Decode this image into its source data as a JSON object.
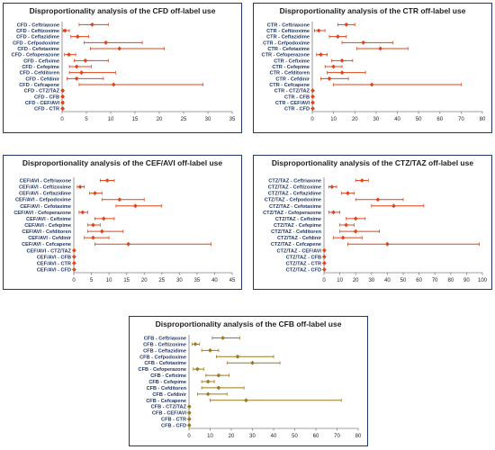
{
  "chart_data": [
    {
      "type": "forest",
      "title": "Disproportionality analysis of the CFD off-label use",
      "color": "#e0441a",
      "categories": [
        "CFD - Ceftriaxone",
        "CFD - Ceftizoxime",
        "CFD - Ceftazidime",
        "CFD - Cefpodoxime",
        "CFD - Cefotaxime",
        "CFD - Cefoperazone",
        "CFD - Cefixime",
        "CFD - Cefepime",
        "CFD - Cefditoren",
        "CFD - Cefdinir",
        "CFD - Cefcapene",
        "CFD - CTZ/TAZ",
        "CFD - CFB",
        "CFD - CEF/AVI",
        "CFD - CTR"
      ],
      "estimate": [
        6.2,
        0.6,
        3.2,
        9.0,
        11.8,
        1.4,
        4.8,
        3.0,
        4.0,
        3.0,
        10.6,
        0.1,
        0.1,
        0.1,
        0.1
      ],
      "lower": [
        3.5,
        0.2,
        1.8,
        4.5,
        5.8,
        0.5,
        2.5,
        1.5,
        1.5,
        1.0,
        3.5,
        0,
        0,
        0,
        0
      ],
      "upper": [
        9.5,
        1.5,
        5.5,
        16.5,
        21.0,
        2.8,
        9.5,
        6.0,
        11.0,
        8.5,
        29.0,
        0.3,
        0.3,
        0.3,
        0.3
      ],
      "xlim": [
        0,
        35
      ],
      "xticks": [
        0,
        5,
        10,
        15,
        20,
        25,
        30,
        35
      ],
      "grid": false
    },
    {
      "type": "forest",
      "title": "Disproportionality analysis of the CTR off-label use",
      "color": "#e0441a",
      "categories": [
        "CTR - Ceftriaxone",
        "CTR - Ceftizoxime",
        "CTR - Ceftazidime",
        "CTR - Cefpodoxime",
        "CTR - Cefotaxime",
        "CTR - Cefoperazone",
        "CTR - Cefixime",
        "CTR - Cefepime",
        "CTR - Cefditoren",
        "CTR - Cefdinir",
        "CTR - Cefcapene",
        "CTR - CTZ/TAZ",
        "CTR - CFB",
        "CTR - CEF/AVI",
        "CTR - CFD"
      ],
      "estimate": [
        16.0,
        3.0,
        12.0,
        24.0,
        32.0,
        4.0,
        14.0,
        10.0,
        14.0,
        8.0,
        28.0,
        0.2,
        0.2,
        0.2,
        0.2
      ],
      "lower": [
        12.0,
        1.0,
        8.0,
        14.0,
        21.0,
        2.0,
        9.0,
        6.0,
        7.0,
        4.0,
        10.0,
        0,
        0,
        0,
        0
      ],
      "upper": [
        20.0,
        6.0,
        16.0,
        38.0,
        45.0,
        7.0,
        19.0,
        14.0,
        25.0,
        17.0,
        70.0,
        0.5,
        0.5,
        0.5,
        0.5
      ],
      "xlim": [
        0,
        80
      ],
      "xticks": [
        0,
        10,
        20,
        30,
        40,
        50,
        60,
        70,
        80
      ],
      "grid": false
    },
    {
      "type": "forest",
      "title": "Disproportionality analysis of the CEF/AVI off-label use",
      "color": "#e0441a",
      "categories": [
        "CEF/AVI - Ceftriaxone",
        "CEF/AVI - Ceftizoxime",
        "CEF/AVI - Ceftazidime",
        "CEF/AVI - Cefpodoxime",
        "CEF/AVI - Cefotaxime",
        "CEF/AVI - Cefoperazone",
        "CEF/AVI - Cefixime",
        "CEF/AVI - Cefepime",
        "CEF/AVI - Cefditoren",
        "CEF/AVI - Cefdinir",
        "CEF/AVI - Cefcapene",
        "CEF/AVI - CTZ/TAZ",
        "CEF/AVI - CFB",
        "CEF/AVI - CTR",
        "CEF/AVI - CFD"
      ],
      "estimate": [
        9.5,
        1.8,
        6.0,
        13.0,
        17.5,
        2.5,
        8.5,
        5.5,
        8.0,
        5.5,
        15.5,
        0.1,
        0.1,
        0.1,
        0.1
      ],
      "lower": [
        7.5,
        1.0,
        4.5,
        8.0,
        12.0,
        1.5,
        6.0,
        4.0,
        4.0,
        3.0,
        6.0,
        0,
        0,
        0,
        0
      ],
      "upper": [
        11.5,
        3.0,
        8.0,
        20.0,
        25.0,
        4.0,
        11.5,
        7.5,
        14.0,
        10.0,
        39.0,
        0.2,
        0.2,
        0.2,
        0.2
      ],
      "xlim": [
        0,
        45
      ],
      "xticks": [
        0,
        5,
        10,
        15,
        20,
        25,
        30,
        35,
        40,
        45
      ],
      "grid": false
    },
    {
      "type": "forest",
      "title": "Disproportionality analysis of the CTZ/TAZ off-label use",
      "color": "#e0441a",
      "categories": [
        "CTZ/TAZ - Ceftriaxone",
        "CTZ/TAZ - Ceftizoxime",
        "CTZ/TAZ - Ceftazidime",
        "CTZ/TAZ - Cefpodoxime",
        "CTZ/TAZ - Cefotaxime",
        "CTZ/TAZ - Cefoperazone",
        "CTZ/TAZ - Cefixime",
        "CTZ/TAZ - Cefepime",
        "CTZ/TAZ - Cefditoren",
        "CTZ/TAZ - Cefdinir",
        "CTZ/TAZ - Cefcapene",
        "CTZ/TAZ - CEF/AVI",
        "CTZ/TAZ - CFB",
        "CTZ/TAZ - CTR",
        "CTZ/TAZ - CFD"
      ],
      "estimate": [
        24.0,
        5.0,
        15.0,
        34.0,
        44.0,
        6.0,
        20.0,
        14.0,
        20.0,
        12.0,
        40.0,
        0.2,
        0.2,
        0.2,
        0.2
      ],
      "lower": [
        20.0,
        3.0,
        11.0,
        20.0,
        30.0,
        3.0,
        14.0,
        10.0,
        10.0,
        6.0,
        15.0,
        0,
        0,
        0,
        0
      ],
      "upper": [
        28.0,
        8.0,
        19.0,
        50.0,
        63.0,
        10.0,
        26.0,
        19.0,
        35.0,
        24.0,
        98.0,
        0.5,
        0.5,
        0.5,
        0.5
      ],
      "xlim": [
        0,
        100
      ],
      "xticks": [
        0,
        10,
        20,
        30,
        40,
        50,
        60,
        70,
        80,
        90,
        100
      ],
      "grid": false
    },
    {
      "type": "forest",
      "title": "Disproportionality analysis of the CFB off-label use",
      "color": "#9b7a1f",
      "categories": [
        "CFB - Ceftriaxone",
        "CFB - Ceftizoxime",
        "CFB - Ceftazidime",
        "CFB - Cefpodoxime",
        "CFB - Cefotaxime",
        "CFB - Cefoperazone",
        "CFB - Cefixime",
        "CFB - Cefepime",
        "CFB - Cefditoren",
        "CFB - Cefdinir",
        "CFB - Cefcapene",
        "CFB - CTZ/TAZ",
        "CFB - CEF/AVI",
        "CFB - CTR",
        "CFB - CFD"
      ],
      "estimate": [
        16.0,
        3.0,
        10.0,
        23.0,
        30.0,
        4.0,
        14.0,
        9.0,
        14.0,
        9.0,
        27.0,
        0.1,
        0.1,
        0.1,
        0.1
      ],
      "lower": [
        11.0,
        1.5,
        6.0,
        13.0,
        18.0,
        2.0,
        8.0,
        6.0,
        6.0,
        4.0,
        10.0,
        0,
        0,
        0,
        0
      ],
      "upper": [
        24.0,
        5.0,
        14.0,
        40.0,
        43.0,
        7.0,
        19.0,
        12.0,
        26.0,
        18.0,
        72.0,
        0.5,
        0.5,
        0.5,
        0.5
      ],
      "xlim": [
        0,
        80
      ],
      "xticks": [
        0,
        10,
        20,
        30,
        40,
        50,
        60,
        70,
        80
      ],
      "grid": false
    }
  ]
}
